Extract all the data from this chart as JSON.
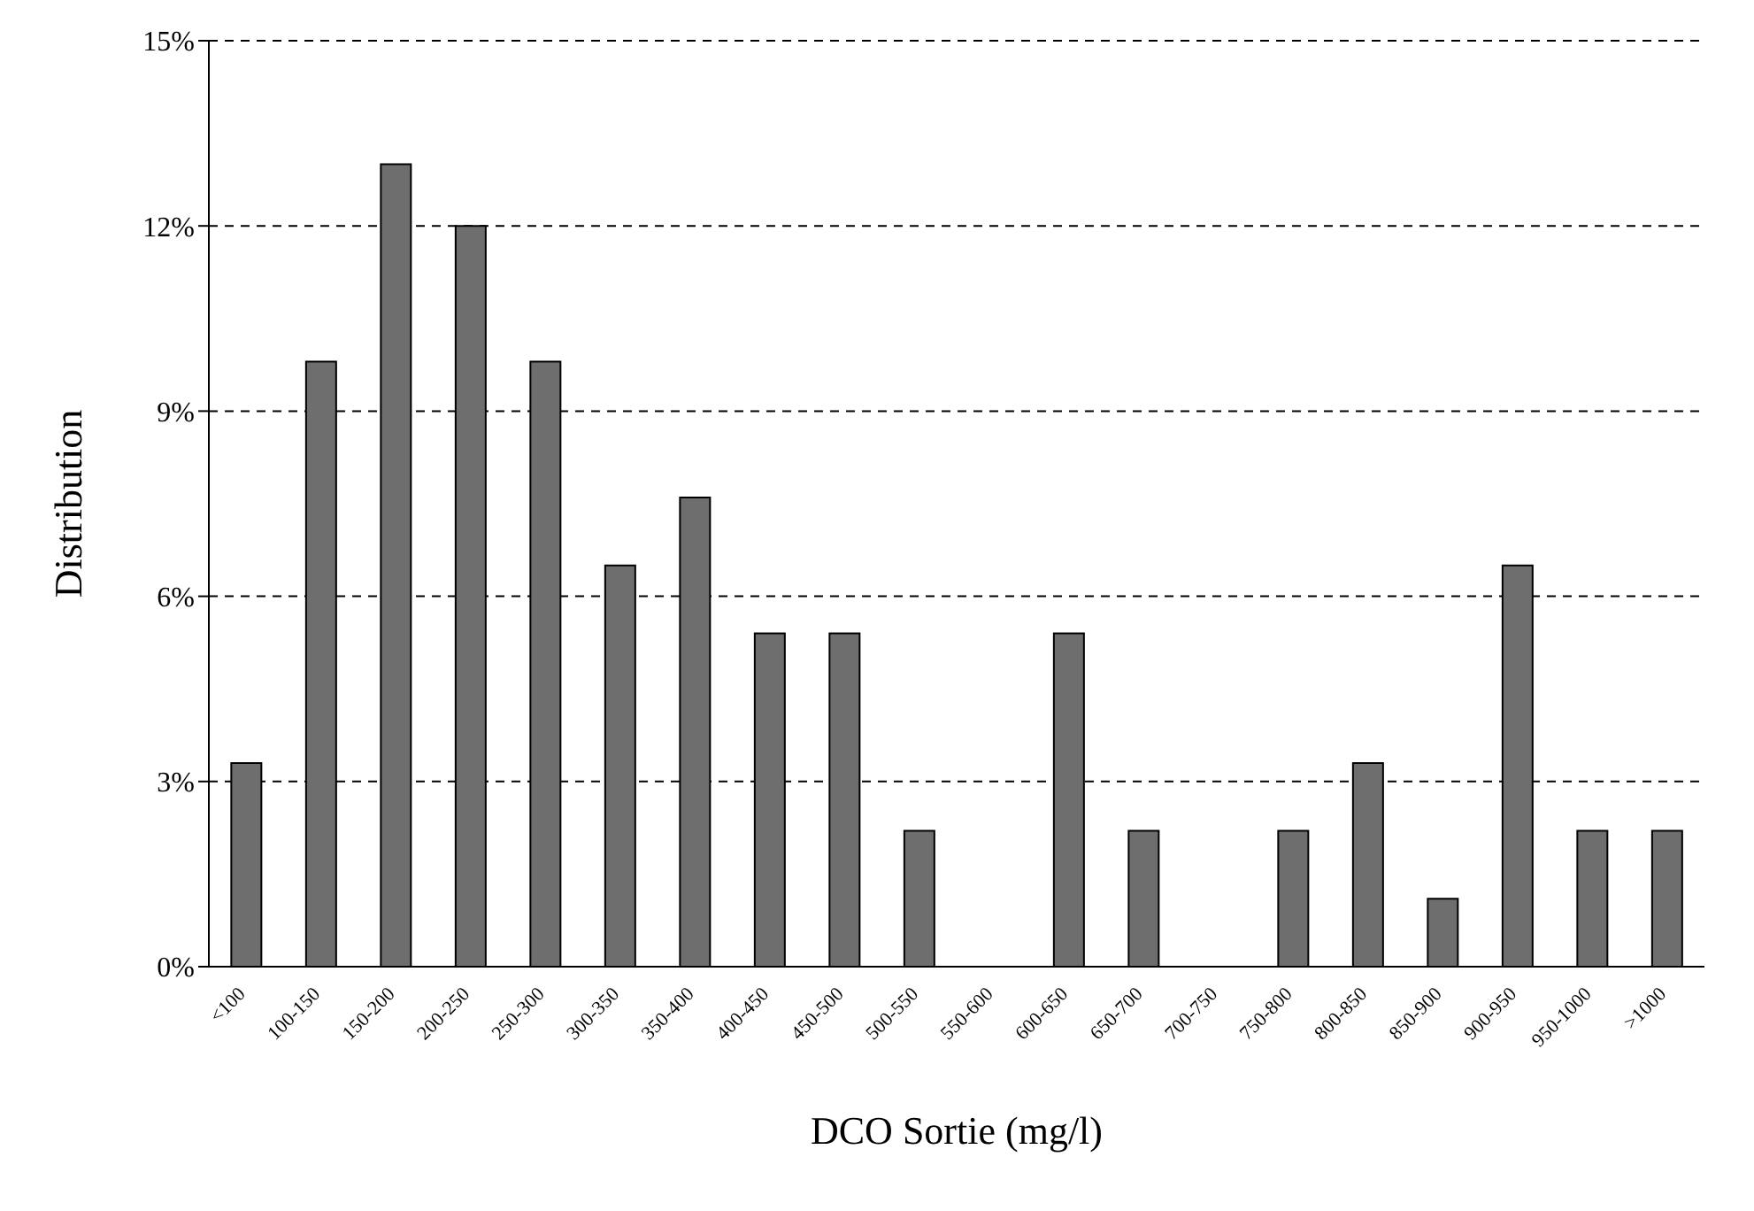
{
  "chart_data": {
    "type": "bar",
    "xlabel": "DCO Sortie (mg/l)",
    "ylabel": "Distribution",
    "categories": [
      "<100",
      "100-150",
      "150-200",
      "200-250",
      "250-300",
      "300-350",
      "350-400",
      "400-450",
      "450-500",
      "500-550",
      "550-600",
      "600-650",
      "650-700",
      "700-750",
      "750-800",
      "800-850",
      "850-900",
      "900-950",
      "950-1000",
      ">1000"
    ],
    "values": [
      3.3,
      9.8,
      13.0,
      12.0,
      9.8,
      6.5,
      7.6,
      5.4,
      5.4,
      2.2,
      0,
      5.4,
      2.2,
      0,
      2.2,
      3.3,
      1.1,
      6.5,
      2.2,
      2.2
    ],
    "color": "#6e6e6e",
    "ylim": [
      0,
      15
    ],
    "yticks": [
      {
        "value": 0,
        "label": "0%"
      },
      {
        "value": 3,
        "label": "3%"
      },
      {
        "value": 6,
        "label": "6%"
      },
      {
        "value": 9,
        "label": "9%"
      },
      {
        "value": 12,
        "label": "12%"
      },
      {
        "value": 15,
        "label": "15%"
      }
    ],
    "grid": "y",
    "line_style": "dashed"
  }
}
